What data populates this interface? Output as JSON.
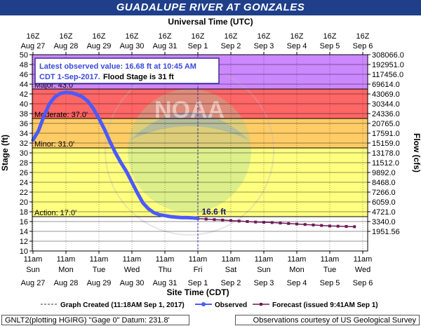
{
  "chart_data": {
    "type": "line",
    "title": "GUADALUPE RIVER AT GONZALES",
    "top_axis_title": "Universal Time (UTC)",
    "bottom_axis_title": "Site Time (CDT)",
    "ylabel": "Stage (ft)",
    "y2label": "Flow (cfs)",
    "ylim": [
      10,
      50
    ],
    "x_range_hours": [
      0,
      240
    ],
    "yticks": [
      10,
      12,
      14,
      16,
      18,
      20,
      22,
      24,
      26,
      28,
      30,
      32,
      34,
      36,
      38,
      40,
      42,
      44,
      46,
      48,
      50
    ],
    "flow_ticks": [
      "1951.56",
      "3340.0",
      "4721.0",
      "6059.0",
      "7266.0",
      "8468.0",
      "9892.0",
      "11512.0",
      "13178.0",
      "15159.0",
      "17591.0",
      "20765.0",
      "24336.0",
      "30344.0",
      "43069.0",
      "69614.0",
      "117456.0",
      "192951.0",
      "308066.0"
    ],
    "top_ticks": [
      {
        "h": 0,
        "line1": "16Z",
        "line2": "Aug 27"
      },
      {
        "h": 24,
        "line1": "16Z",
        "line2": "Aug 28"
      },
      {
        "h": 48,
        "line1": "16Z",
        "line2": "Aug 29"
      },
      {
        "h": 72,
        "line1": "16Z",
        "line2": "Aug 30"
      },
      {
        "h": 96,
        "line1": "16Z",
        "line2": "Aug 31"
      },
      {
        "h": 120,
        "line1": "16Z",
        "line2": "Sep 1"
      },
      {
        "h": 144,
        "line1": "16Z",
        "line2": "Sep 2"
      },
      {
        "h": 168,
        "line1": "16Z",
        "line2": "Sep 3"
      },
      {
        "h": 192,
        "line1": "16Z",
        "line2": "Sep 4"
      },
      {
        "h": 216,
        "line1": "16Z",
        "line2": "Sep 5"
      },
      {
        "h": 240,
        "line1": "16Z",
        "line2": "Sep 6"
      }
    ],
    "bottom_ticks": [
      {
        "h": 0,
        "line1": "11am",
        "line2": "Sun",
        "line3": "Aug 27"
      },
      {
        "h": 24,
        "line1": "11am",
        "line2": "Mon",
        "line3": "Aug 28"
      },
      {
        "h": 48,
        "line1": "11am",
        "line2": "Tue",
        "line3": "Aug 29"
      },
      {
        "h": 72,
        "line1": "11am",
        "line2": "Wed",
        "line3": "Aug 30"
      },
      {
        "h": 96,
        "line1": "11am",
        "line2": "Thu",
        "line3": "Aug 31"
      },
      {
        "h": 120,
        "line1": "11am",
        "line2": "Fri",
        "line3": "Sep 1"
      },
      {
        "h": 144,
        "line1": "11am",
        "line2": "Sat",
        "line3": "Sep 2"
      },
      {
        "h": 168,
        "line1": "11am",
        "line2": "Sun",
        "line3": "Sep 3"
      },
      {
        "h": 192,
        "line1": "11am",
        "line2": "Mon",
        "line3": "Sep 4"
      },
      {
        "h": 216,
        "line1": "11am",
        "line2": "Tue",
        "line3": "Sep 5"
      },
      {
        "h": 240,
        "line1": "11am",
        "line2": "Wed",
        "line3": "Sep 6"
      }
    ],
    "flood_bands": [
      {
        "name": "Action",
        "label": "Action: 17.0'",
        "from": 17,
        "to": 31,
        "color": "#ffff80"
      },
      {
        "name": "Minor",
        "label": "Minor: 31.0'",
        "from": 31,
        "to": 37,
        "color": "#ffcc66"
      },
      {
        "name": "Moderate",
        "label": "Moderate: 37.0'",
        "from": 37,
        "to": 43,
        "color": "#ff6666"
      },
      {
        "name": "Major",
        "label": "Major: 43.0'",
        "from": 43,
        "to": 50,
        "color": "#cc88ff"
      }
    ],
    "observed": {
      "name": "Observed",
      "color": "#4a5aff",
      "points": [
        [
          0,
          32.6
        ],
        [
          4,
          34.5
        ],
        [
          8,
          37.5
        ],
        [
          12,
          40.0
        ],
        [
          16,
          41.4
        ],
        [
          20,
          42.1
        ],
        [
          24,
          42.3
        ],
        [
          28,
          42.2
        ],
        [
          32,
          41.9
        ],
        [
          36,
          41.4
        ],
        [
          40,
          40.5
        ],
        [
          44,
          39.0
        ],
        [
          48,
          37.0
        ],
        [
          52,
          34.8
        ],
        [
          56,
          32.3
        ],
        [
          60,
          30.0
        ],
        [
          64,
          28.0
        ],
        [
          68,
          26.2
        ],
        [
          72,
          24.0
        ],
        [
          76,
          21.8
        ],
        [
          80,
          19.8
        ],
        [
          84,
          18.6
        ],
        [
          88,
          17.8
        ],
        [
          92,
          17.4
        ],
        [
          96,
          17.2
        ],
        [
          100,
          17.0
        ],
        [
          104,
          16.9
        ],
        [
          108,
          16.8
        ],
        [
          112,
          16.8
        ],
        [
          116,
          16.75
        ],
        [
          119.75,
          16.68
        ]
      ]
    },
    "forecast": {
      "name": "Forecast (issued 9:41AM Sep 1)",
      "color": "#6e1a55",
      "points": [
        [
          120,
          16.6
        ],
        [
          126,
          16.5
        ],
        [
          132,
          16.4
        ],
        [
          138,
          16.3
        ],
        [
          144,
          16.2
        ],
        [
          150,
          16.1
        ],
        [
          156,
          16.0
        ],
        [
          162,
          15.9
        ],
        [
          168,
          15.85
        ],
        [
          174,
          15.8
        ],
        [
          180,
          15.7
        ],
        [
          186,
          15.6
        ],
        [
          192,
          15.5
        ],
        [
          198,
          15.4
        ],
        [
          204,
          15.3
        ],
        [
          210,
          15.2
        ],
        [
          216,
          15.1
        ],
        [
          222,
          15.05
        ],
        [
          228,
          15.0
        ],
        [
          234,
          14.95
        ]
      ]
    },
    "latest_value_label": "16.6 ft",
    "latest_value_hour": 120,
    "annotation_line1": "Latest observed value: 16.68 ft at 10:45 AM",
    "annotation_line2_prefix": "CDT 1-Sep-2017.",
    "annotation_line2_suffix": "Flood Stage is 31 ft",
    "watermark": "NOAA",
    "legend": {
      "graph_created": "Graph Created (11:18AM Sep 1, 2017)",
      "observed": "Observed",
      "forecast": "Forecast (issued 9:41AM Sep 1)"
    },
    "footer_left": "GNLT2(plotting HGIRG) \"Gage 0\" Datum: 231.8'",
    "footer_right": "Observations courtesy of US Geological Survey"
  }
}
